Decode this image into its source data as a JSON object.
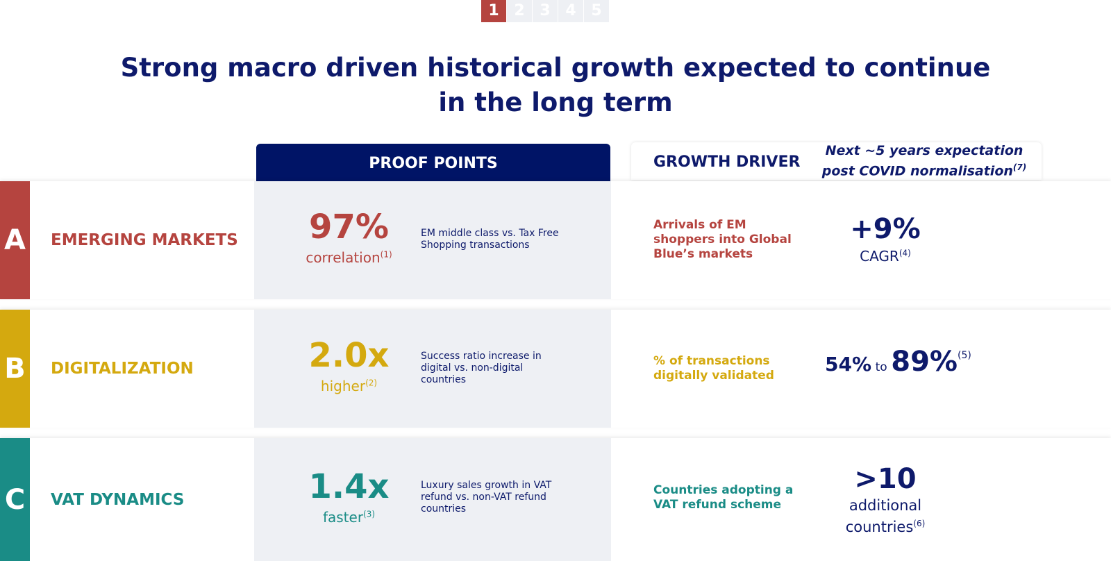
{
  "pagination": [
    "1",
    "2",
    "3",
    "4",
    "5"
  ],
  "title": [
    "Strong macro driven historical growth expected to continue",
    "in the long term"
  ],
  "headers": {
    "proof_points": "PROOF POINTS",
    "growth_driver": "GROWTH DRIVER",
    "expectation": [
      "Next ~5 years expectation",
      "post COVID normalisation"
    ],
    "expectation_note": "(7)"
  },
  "rows": [
    {
      "letter": "A",
      "label": "EMERGING MARKETS",
      "stat": "97%",
      "stat_caption": "correlation",
      "stat_note": "(1)",
      "description": "EM middle class vs. Tax Free Shopping transactions",
      "driver": "Arrivals of EM shoppers into Global Blue’s markets",
      "expectation": {
        "main": "+9%",
        "caption": "CAGR",
        "note": "(4)"
      }
    },
    {
      "letter": "B",
      "label": "DIGITALIZATION",
      "stat": "2.0x",
      "stat_caption": "higher",
      "stat_note": "(2)",
      "description": "Success ratio increase in digital vs. non-digital countries",
      "driver": "% of transactions digitally validated",
      "expectation": {
        "from": "54%",
        "joiner": "to",
        "main": "89%",
        "note": "(5)"
      }
    },
    {
      "letter": "C",
      "label": "VAT DYNAMICS",
      "stat": "1.4x",
      "stat_caption": "faster",
      "stat_note": "(3)",
      "description": "Luxury sales growth in VAT refund vs. non-VAT refund countries",
      "driver": "Countries adopting a VAT refund scheme",
      "expectation": {
        "main": ">10",
        "caption": [
          "additional",
          "countries"
        ],
        "note": "(6)"
      }
    }
  ]
}
